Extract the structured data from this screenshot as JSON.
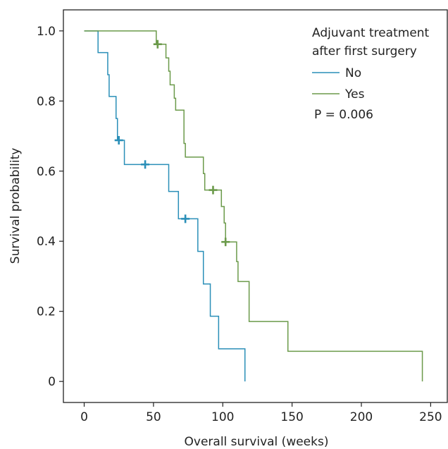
{
  "chart_data": {
    "type": "line",
    "subtype": "kaplan-meier step curves",
    "title": "",
    "xlabel": "Overall survival (weeks)",
    "ylabel": "Survival probability",
    "xlim": [
      -15,
      262
    ],
    "ylim": [
      -0.06,
      1.06
    ],
    "x_ticks": [
      0,
      50,
      100,
      150,
      200,
      250
    ],
    "y_ticks": [
      0,
      0.2,
      0.4,
      0.6,
      0.8,
      1.0
    ],
    "y_tick_labels": [
      "0",
      "0.2",
      "0.4",
      "0.6",
      "0.8",
      "1.0"
    ],
    "grid": false,
    "legend_title": "Adjuvant treatment\nafter first surgery",
    "legend_title_lines": [
      "Adjuvant treatment",
      "after first surgery"
    ],
    "legend_position": "top-right",
    "annotation": "P = 0.006",
    "series": [
      {
        "name": "No",
        "color": "#2a8fb8",
        "steps": [
          [
            0,
            1.0
          ],
          [
            10,
            0.938
          ],
          [
            17,
            0.875
          ],
          [
            18,
            0.813
          ],
          [
            23,
            0.75
          ],
          [
            24,
            0.688
          ],
          [
            29,
            0.619
          ],
          [
            61,
            0.542
          ],
          [
            68,
            0.464
          ],
          [
            82,
            0.371
          ],
          [
            86,
            0.278
          ],
          [
            91,
            0.186
          ],
          [
            97,
            0.093
          ],
          [
            116,
            0.0
          ]
        ],
        "end_x": 116,
        "censored": [
          [
            25,
            0.688
          ],
          [
            44,
            0.619
          ],
          [
            73,
            0.464
          ]
        ]
      },
      {
        "name": "Yes",
        "color": "#6b9a4a",
        "steps": [
          [
            0,
            1.0
          ],
          [
            52,
            0.962
          ],
          [
            59,
            0.923
          ],
          [
            61,
            0.885
          ],
          [
            62,
            0.846
          ],
          [
            65,
            0.808
          ],
          [
            66,
            0.774
          ],
          [
            72,
            0.679
          ],
          [
            73,
            0.64
          ],
          [
            86,
            0.593
          ],
          [
            87,
            0.546
          ],
          [
            99,
            0.499
          ],
          [
            101,
            0.452
          ],
          [
            102,
            0.398
          ],
          [
            110,
            0.342
          ],
          [
            111,
            0.285
          ],
          [
            119,
            0.171
          ],
          [
            147,
            0.086
          ],
          [
            244,
            0.0
          ]
        ],
        "end_x": 244,
        "censored": [
          [
            53,
            0.962
          ],
          [
            93,
            0.546
          ],
          [
            102,
            0.398
          ]
        ]
      }
    ]
  }
}
